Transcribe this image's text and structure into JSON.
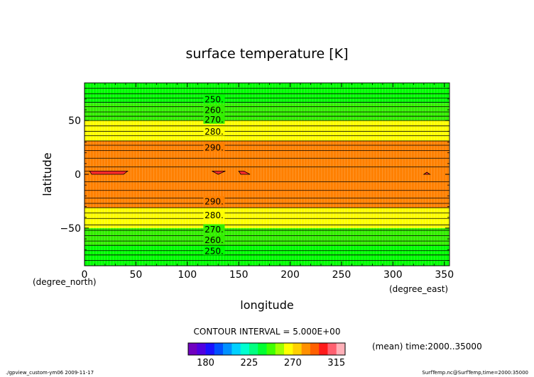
{
  "chart_data": {
    "type": "heatmap",
    "title": "surface temperature [K]",
    "xlabel": "longitude",
    "ylabel": "latitude",
    "x_units": "(degree_east)",
    "y_units": "(degree_north)",
    "xlim": [
      0,
      355
    ],
    "ylim": [
      -85,
      85
    ],
    "x_ticks": [
      0,
      50,
      100,
      150,
      200,
      250,
      300,
      350
    ],
    "y_ticks": [
      50,
      0,
      -50
    ],
    "x_tick_labels": [
      "0",
      "50",
      "100",
      "150",
      "200",
      "250",
      "300",
      "350"
    ],
    "y_tick_labels": [
      "50",
      "0",
      "−50"
    ],
    "bands": [
      {
        "lat_min": 66,
        "lat_max": 85,
        "color": "#00ff00"
      },
      {
        "lat_min": 50,
        "lat_max": 66,
        "color": "#33ee00"
      },
      {
        "lat_min": 31,
        "lat_max": 50,
        "color": "#ffff00"
      },
      {
        "lat_min": -31,
        "lat_max": 31,
        "color": "#ff8000"
      },
      {
        "lat_min": -50,
        "lat_max": -31,
        "color": "#ffff00"
      },
      {
        "lat_min": -66,
        "lat_max": -50,
        "color": "#33ee00"
      },
      {
        "lat_min": -85,
        "lat_max": -66,
        "color": "#00ff00"
      }
    ],
    "contour_lats": [
      80,
      75,
      71,
      67,
      63,
      58,
      54,
      50,
      45,
      40,
      36,
      31,
      27,
      22,
      15,
      7,
      -7,
      -15,
      -22,
      -27,
      -31,
      -36,
      -41,
      -47,
      -52,
      -57,
      -62,
      -66,
      -71,
      -75,
      -80
    ],
    "contour_labels": [
      {
        "text": "250.",
        "lon": 126,
        "lat": 70
      },
      {
        "text": "260.",
        "lon": 126,
        "lat": 60
      },
      {
        "text": "270.",
        "lon": 126,
        "lat": 51
      },
      {
        "text": "280.",
        "lon": 126,
        "lat": 40
      },
      {
        "text": "290.",
        "lon": 126,
        "lat": 25
      },
      {
        "text": "290.",
        "lon": 126,
        "lat": -25
      },
      {
        "text": "280.",
        "lon": 126,
        "lat": -38
      },
      {
        "text": "270.",
        "lon": 126,
        "lat": -51
      },
      {
        "text": "260.",
        "lon": 126,
        "lat": -61
      },
      {
        "text": "250.",
        "lon": 126,
        "lat": -71
      }
    ],
    "hot_patches": [
      [
        [
          0,
          3
        ],
        [
          5,
          3
        ],
        [
          7,
          0
        ],
        [
          38,
          0
        ],
        [
          42,
          3
        ],
        [
          0,
          3
        ]
      ],
      [
        [
          124,
          3
        ],
        [
          137,
          3
        ],
        [
          130,
          0
        ],
        [
          124,
          3
        ]
      ],
      [
        [
          150,
          3
        ],
        [
          155,
          3
        ],
        [
          161,
          0
        ],
        [
          152,
          0
        ],
        [
          150,
          3
        ]
      ],
      [
        [
          330,
          0
        ],
        [
          336,
          0
        ],
        [
          333,
          2
        ],
        [
          330,
          0
        ]
      ]
    ],
    "hot_color": "#ff2a2a",
    "contour_interval": "CONTOUR INTERVAL = 5.000E+00",
    "colorbar": {
      "colors": [
        "#7000c0",
        "#5000e0",
        "#1a10ff",
        "#0050ff",
        "#0090ff",
        "#00d0ff",
        "#00ffd0",
        "#00ff80",
        "#00ff30",
        "#40ff00",
        "#a0ff00",
        "#ffff00",
        "#ffd000",
        "#ff9000",
        "#ff6000",
        "#ff1a1a",
        "#ff6070",
        "#ffb0b8"
      ],
      "labels": [
        "180",
        "225",
        "270",
        "315"
      ]
    },
    "time_note": "(mean) time:2000..35000",
    "footer_left": "./gpview_custom-ym06   2009-11-17",
    "footer_right": "SurfTemp.nc@SurfTemp,time=2000:35000"
  }
}
